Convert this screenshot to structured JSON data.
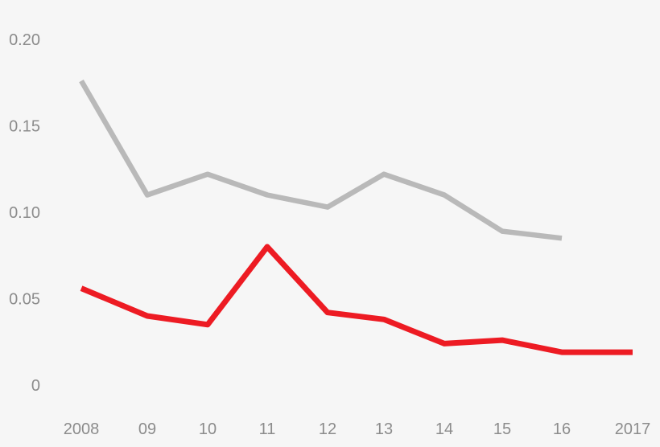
{
  "chart_data": {
    "type": "line",
    "title": "",
    "xlabel": "",
    "ylabel": "",
    "grid": false,
    "legend": "none",
    "categories": [
      "2008",
      "09",
      "10",
      "11",
      "12",
      "13",
      "14",
      "15",
      "16",
      "2017"
    ],
    "series": [
      {
        "name": "gray-series",
        "color": "#b9b9b9",
        "stroke_width": 6.5,
        "values": [
          0.176,
          0.11,
          0.122,
          0.11,
          0.103,
          0.122,
          0.11,
          0.089,
          0.085,
          null
        ]
      },
      {
        "name": "red-series",
        "color": "#ed1b23",
        "stroke_width": 7,
        "values": [
          0.056,
          0.04,
          0.035,
          0.08,
          0.042,
          0.038,
          0.024,
          0.026,
          0.019,
          0.019
        ]
      }
    ],
    "y_axis": {
      "range": [
        0,
        0.2
      ],
      "ticks": [
        {
          "label": "0.20",
          "value": 0.2
        },
        {
          "label": "0.15",
          "value": 0.15
        },
        {
          "label": "0.10",
          "value": 0.1
        },
        {
          "label": "0.05",
          "value": 0.05
        },
        {
          "label": "0",
          "value": 0
        }
      ]
    },
    "colors": {
      "background": "#f6f6f6",
      "tick_text": "#8c8c8c"
    }
  }
}
